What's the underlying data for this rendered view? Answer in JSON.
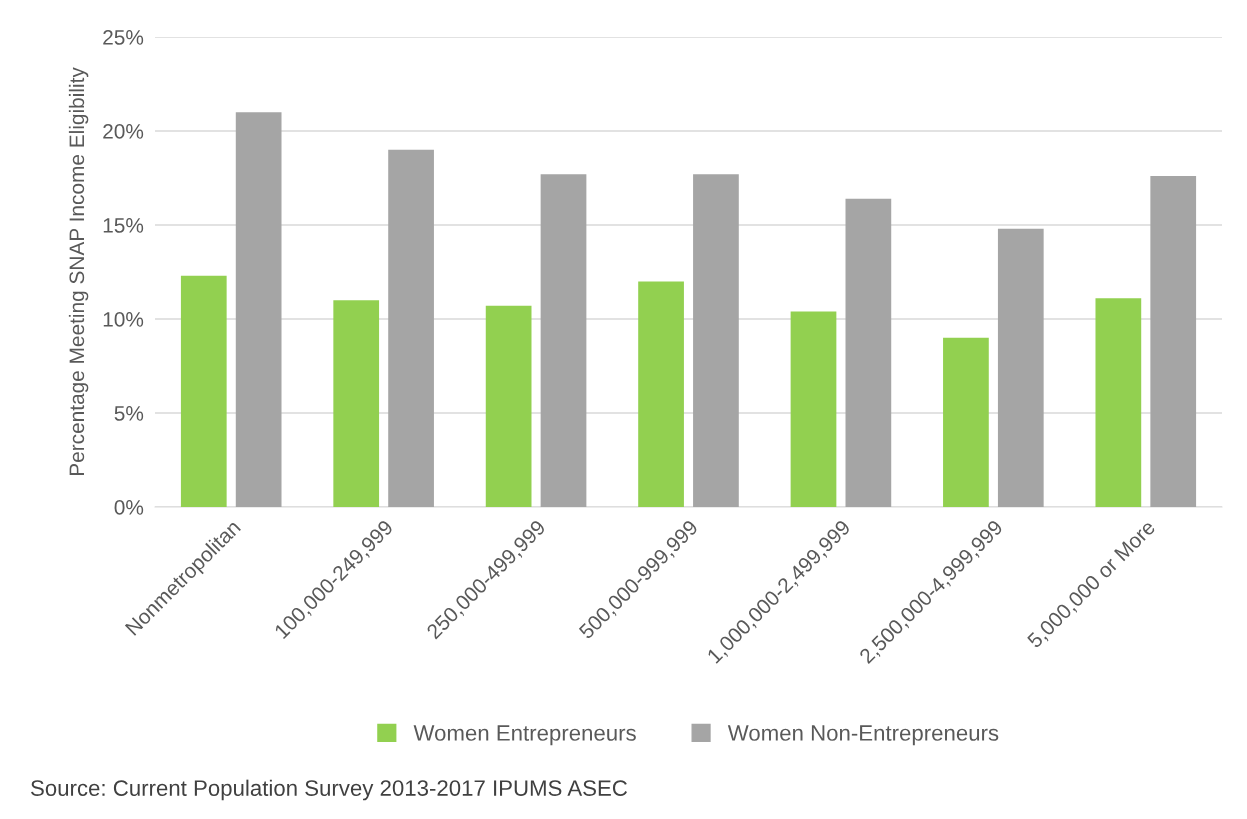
{
  "chart_data": {
    "type": "bar",
    "ylabel": "Percentage Meeting SNAP Income Eligibility",
    "categories": [
      "Nonmetropolitan",
      "100,000-249,999",
      "250,000-499,999",
      "500,000-999,999",
      "1,000,000-2,499,999",
      "2,500,000-4,999,999",
      "5,000,000 or More"
    ],
    "series": [
      {
        "name": "Women Entrepreneurs",
        "color": "#92d050",
        "values": [
          12.3,
          11.0,
          10.7,
          12.0,
          10.4,
          9.0,
          11.1
        ]
      },
      {
        "name": "Women Non-Entrepreneurs",
        "color": "#a5a5a5",
        "values": [
          21.0,
          19.0,
          17.7,
          17.7,
          16.4,
          14.8,
          17.6
        ]
      }
    ],
    "ylim": [
      0,
      25
    ],
    "yticks": [
      {
        "value": 0,
        "label": "0%"
      },
      {
        "value": 5,
        "label": "5%"
      },
      {
        "value": 10,
        "label": "10%"
      },
      {
        "value": 15,
        "label": "15%"
      },
      {
        "value": 20,
        "label": "20%"
      },
      {
        "value": 25,
        "label": "25%"
      }
    ],
    "grid": "y",
    "legend": "bottom",
    "annotations": [
      "Source: Current Population Survey 2013-2017 IPUMS ASEC"
    ]
  }
}
